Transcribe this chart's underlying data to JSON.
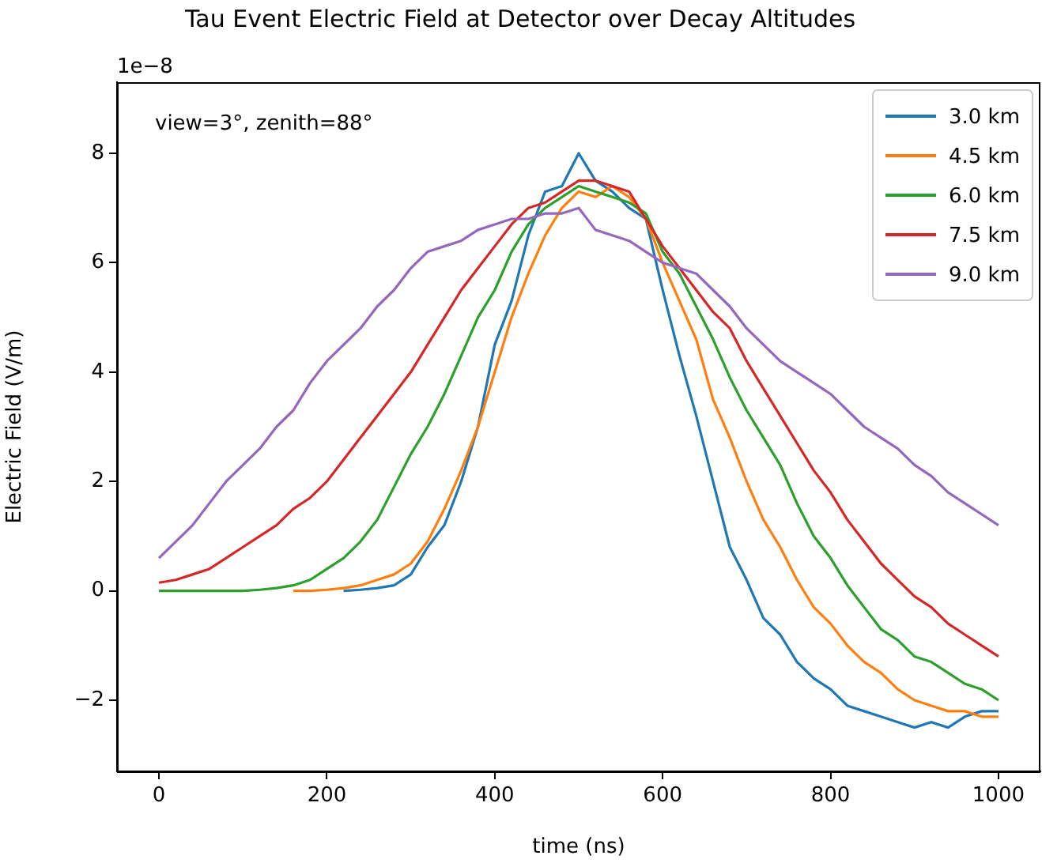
{
  "chart_data": {
    "type": "line",
    "title": "Tau Event Electric Field at Detector over Decay Altitudes",
    "xlabel": "time (ns)",
    "ylabel": "Electric Field (V/m)",
    "annotations": [
      "1e−8",
      "view=3°, zenith=88°"
    ],
    "xlim": [
      -50,
      1050
    ],
    "xticks": [
      0,
      200,
      400,
      600,
      800,
      1000
    ],
    "ylim": [
      -3.3,
      9.3
    ],
    "yticks": [
      {
        "value": -2,
        "label": "−2"
      },
      0,
      2,
      4,
      6,
      8
    ],
    "grid": false,
    "legend": "top right",
    "marker": "none",
    "line_style": "solid",
    "x": [
      0,
      20,
      40,
      60,
      80,
      100,
      120,
      140,
      160,
      180,
      200,
      220,
      240,
      260,
      280,
      300,
      320,
      340,
      360,
      380,
      400,
      420,
      440,
      460,
      480,
      500,
      520,
      540,
      560,
      580,
      600,
      620,
      640,
      660,
      680,
      700,
      720,
      740,
      760,
      780,
      800,
      820,
      840,
      860,
      880,
      900,
      920,
      940,
      960,
      980,
      1000
    ],
    "series": [
      {
        "name": "3.0 km",
        "color": "#1f77b4",
        "values": [
          null,
          null,
          null,
          null,
          null,
          null,
          null,
          null,
          null,
          null,
          null,
          0,
          0.02,
          0.05,
          0.1,
          0.3,
          0.8,
          1.2,
          2.0,
          3.0,
          4.5,
          5.3,
          6.5,
          7.3,
          7.4,
          8.0,
          7.5,
          7.3,
          7.0,
          6.8,
          5.5,
          4.3,
          3.2,
          2.0,
          0.8,
          0.2,
          -0.5,
          -0.8,
          -1.3,
          -1.6,
          -1.8,
          -2.1,
          -2.2,
          -2.3,
          -2.4,
          -2.5,
          -2.4,
          -2.5,
          -2.3,
          -2.2,
          -2.2
        ]
      },
      {
        "name": "4.5 km",
        "color": "#ff7f0e",
        "values": [
          null,
          null,
          null,
          null,
          null,
          null,
          null,
          null,
          0,
          0,
          0.02,
          0.05,
          0.1,
          0.2,
          0.3,
          0.5,
          0.9,
          1.5,
          2.2,
          3.0,
          4.0,
          5.0,
          5.8,
          6.5,
          7.0,
          7.3,
          7.2,
          7.4,
          7.2,
          6.8,
          6.0,
          5.3,
          4.6,
          3.5,
          2.8,
          2.0,
          1.3,
          0.8,
          0.2,
          -0.3,
          -0.6,
          -1.0,
          -1.3,
          -1.5,
          -1.8,
          -2.0,
          -2.1,
          -2.2,
          -2.2,
          -2.3,
          -2.3
        ]
      },
      {
        "name": "6.0 km",
        "color": "#2ca02c",
        "values": [
          0,
          0,
          0,
          0,
          0,
          0,
          0.02,
          0.05,
          0.1,
          0.2,
          0.4,
          0.6,
          0.9,
          1.3,
          1.9,
          2.5,
          3.0,
          3.6,
          4.3,
          5.0,
          5.5,
          6.2,
          6.7,
          7.0,
          7.2,
          7.4,
          7.3,
          7.2,
          7.1,
          6.9,
          6.2,
          5.8,
          5.2,
          4.6,
          3.9,
          3.3,
          2.8,
          2.3,
          1.6,
          1.0,
          0.6,
          0.1,
          -0.3,
          -0.7,
          -0.9,
          -1.2,
          -1.3,
          -1.5,
          -1.7,
          -1.8,
          -2.0
        ]
      },
      {
        "name": "7.5 km",
        "color": "#d62728",
        "values": [
          0.15,
          0.2,
          0.3,
          0.4,
          0.6,
          0.8,
          1.0,
          1.2,
          1.5,
          1.7,
          2.0,
          2.4,
          2.8,
          3.2,
          3.6,
          4.0,
          4.5,
          5.0,
          5.5,
          5.9,
          6.3,
          6.7,
          7.0,
          7.1,
          7.3,
          7.5,
          7.5,
          7.4,
          7.3,
          6.8,
          6.3,
          5.9,
          5.5,
          5.1,
          4.8,
          4.2,
          3.7,
          3.2,
          2.7,
          2.2,
          1.8,
          1.3,
          0.9,
          0.5,
          0.2,
          -0.1,
          -0.3,
          -0.6,
          -0.8,
          -1.0,
          -1.2
        ]
      },
      {
        "name": "9.0 km",
        "color": "#9467bd",
        "values": [
          0.6,
          0.9,
          1.2,
          1.6,
          2.0,
          2.3,
          2.6,
          3.0,
          3.3,
          3.8,
          4.2,
          4.5,
          4.8,
          5.2,
          5.5,
          5.9,
          6.2,
          6.3,
          6.4,
          6.6,
          6.7,
          6.8,
          6.8,
          6.9,
          6.9,
          7.0,
          6.6,
          6.5,
          6.4,
          6.2,
          6.0,
          5.9,
          5.8,
          5.5,
          5.2,
          4.8,
          4.5,
          4.2,
          4.0,
          3.8,
          3.6,
          3.3,
          3.0,
          2.8,
          2.6,
          2.3,
          2.1,
          1.8,
          1.6,
          1.4,
          1.2
        ]
      }
    ]
  }
}
